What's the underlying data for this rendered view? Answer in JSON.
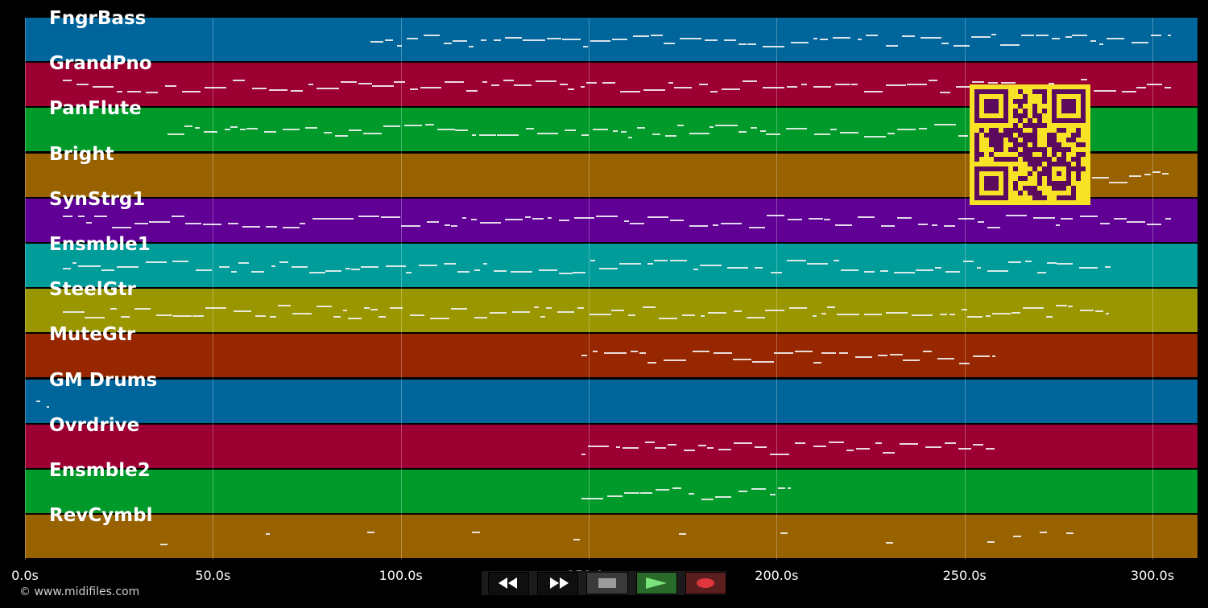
{
  "tracks": [
    {
      "label": "FngrBass",
      "color": "#00659b"
    },
    {
      "label": "GrandPno",
      "color": "#9c0033"
    },
    {
      "label": "PanFlute",
      "color": "#009a2a"
    },
    {
      "label": "Bright",
      "color": "#986200"
    },
    {
      "label": "SynStrg1",
      "color": "#600095"
    },
    {
      "label": "Ensmble1",
      "color": "#009c99"
    },
    {
      "label": "SteelGtr",
      "color": "#999600"
    },
    {
      "label": "MuteGtr",
      "color": "#962700"
    },
    {
      "label": "GM Drums",
      "color": "#00659b"
    },
    {
      "label": "Ovrdrive",
      "color": "#9c0033"
    },
    {
      "label": "Ensmble2",
      "color": "#009a2a"
    },
    {
      "label": "RevCymbl",
      "color": "#986200"
    }
  ],
  "axis": {
    "ticks": [
      "0.0s",
      "50.0s",
      "100.0s",
      "150.0s",
      "200.0s",
      "250.0s",
      "300.0s"
    ],
    "tick_values": [
      0,
      50,
      100,
      150,
      200,
      250,
      300
    ],
    "max_seconds": 312
  },
  "copyright": "© www.midifiles.com",
  "transport": {
    "rewind": "rewind-icon",
    "fast_forward": "fast-forward-icon",
    "stop": "stop-icon",
    "play": "play-icon",
    "record": "record-icon"
  },
  "qr_code": "qr-code-icon"
}
